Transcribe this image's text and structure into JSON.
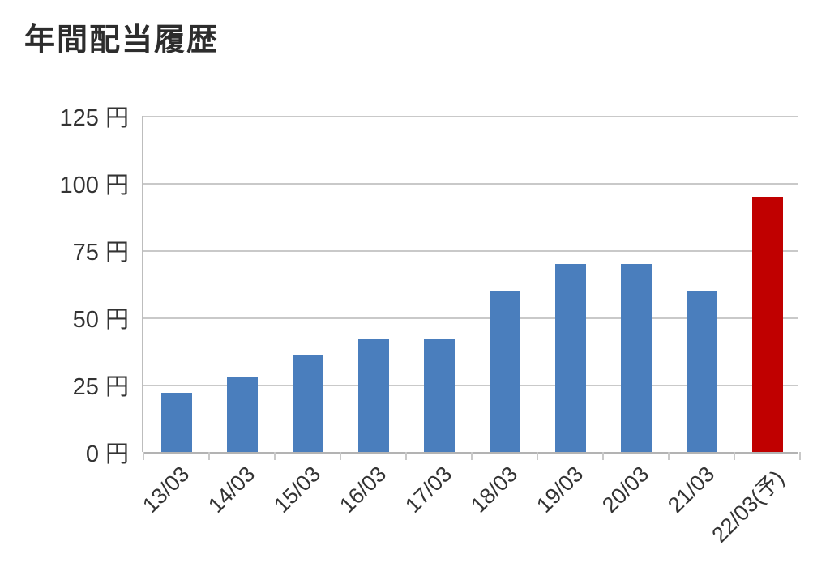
{
  "chart_data": {
    "type": "bar",
    "title": "年間配当履歴",
    "categories": [
      "13/03",
      "14/03",
      "15/03",
      "16/03",
      "17/03",
      "18/03",
      "19/03",
      "20/03",
      "21/03",
      "22/03(予)"
    ],
    "values": [
      22,
      28,
      36,
      42,
      42,
      60,
      70,
      70,
      60,
      95
    ],
    "unit": "円",
    "xlabel": "",
    "ylabel": "",
    "ylim": [
      0,
      125
    ],
    "yticks": [
      0,
      25,
      50,
      75,
      100,
      125
    ],
    "ytick_labels": [
      "0 円",
      "25 円",
      "50 円",
      "75 円",
      "100 円",
      "125 円"
    ],
    "bar_colors": [
      "#4a7ebd",
      "#4a7ebd",
      "#4a7ebd",
      "#4a7ebd",
      "#4a7ebd",
      "#4a7ebd",
      "#4a7ebd",
      "#4a7ebd",
      "#4a7ebd",
      "#c00000"
    ],
    "colors": {
      "default_bar": "#4a7ebd",
      "highlight_bar": "#c00000",
      "gridline": "#c9c9c9",
      "axis": "#b3b3b3",
      "text": "#333333",
      "title_text": "#2d2d2d"
    },
    "grid": true,
    "legend": false,
    "x_label_rotation_deg": -45
  }
}
